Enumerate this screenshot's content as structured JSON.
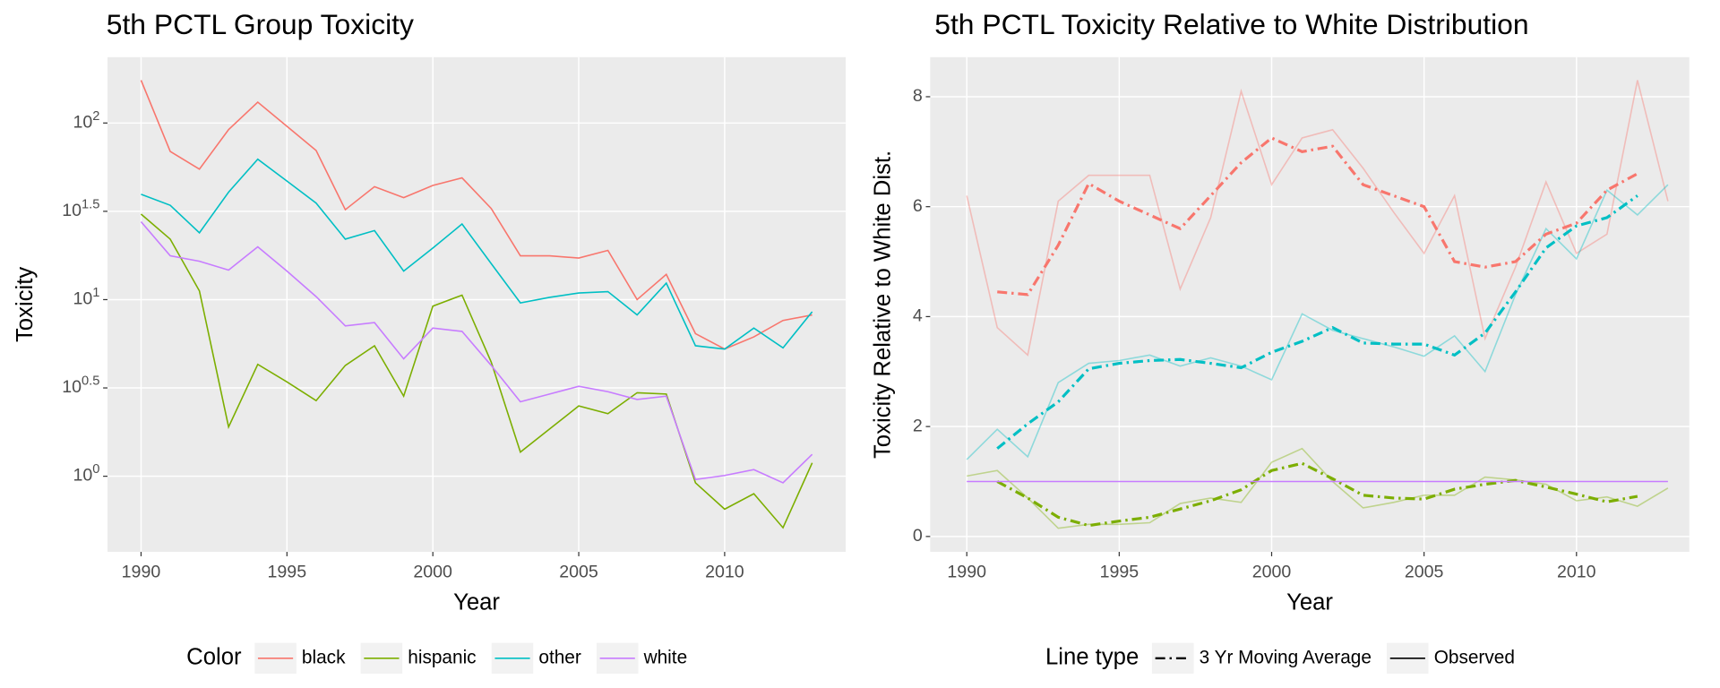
{
  "chart_data": [
    {
      "type": "line",
      "title": "5th PCTL Group Toxicity",
      "x_label": "Year",
      "y_label": "Toxicity",
      "y_scale": "log",
      "x": [
        1990,
        1991,
        1992,
        1993,
        1994,
        1995,
        1996,
        1997,
        1998,
        1999,
        2000,
        2001,
        2002,
        2003,
        2004,
        2005,
        2006,
        2007,
        2008,
        2009,
        2010,
        2011,
        2012,
        2013
      ],
      "xlim": [
        1988.85,
        2014.15
      ],
      "xticks": [
        1990,
        1995,
        2000,
        2005,
        2010
      ],
      "ylim": [
        0.373,
        236
      ],
      "yticks": [
        {
          "value": 1,
          "label": "10^0"
        },
        {
          "value": 3.162,
          "label": "10^0.5"
        },
        {
          "value": 10,
          "label": "10^1"
        },
        {
          "value": 31.62,
          "label": "10^1.5"
        },
        {
          "value": 100,
          "label": "10^2"
        }
      ],
      "grid": true,
      "legend": {
        "title": "Color",
        "position": "bottom"
      },
      "series": [
        {
          "name": "black",
          "color": "#F8766D",
          "values": [
            174.6,
            69.0,
            54.8,
            91.8,
            131.2,
            95.8,
            69.9,
            32.3,
            43.6,
            37.8,
            44.3,
            48.9,
            32.8,
            17.7,
            17.7,
            17.2,
            19.0,
            10.0,
            13.9,
            6.42,
            5.25,
            6.15,
            7.62,
            8.19
          ]
        },
        {
          "name": "hispanic",
          "color": "#7CAE00",
          "values": [
            30.5,
            22.0,
            11.2,
            1.9,
            4.3,
            3.42,
            2.68,
            4.24,
            5.48,
            2.84,
            9.18,
            10.6,
            4.43,
            1.37,
            1.85,
            2.5,
            2.26,
            2.97,
            2.92,
            0.918,
            0.651,
            0.796,
            0.511,
            1.19
          ]
        },
        {
          "name": "other",
          "color": "#00BFC4",
          "values": [
            39.5,
            34.2,
            23.9,
            40.6,
            62.4,
            46.9,
            35.2,
            22.0,
            24.6,
            14.5,
            19.6,
            26.8,
            16.0,
            9.58,
            10.3,
            10.9,
            11.1,
            8.19,
            12.4,
            5.48,
            5.25,
            6.9,
            5.33,
            8.54
          ]
        },
        {
          "name": "white",
          "color": "#C77CFF",
          "values": [
            27.6,
            17.7,
            16.5,
            14.7,
            19.9,
            14.5,
            10.4,
            7.1,
            7.41,
            4.62,
            6.9,
            6.61,
            4.24,
            2.64,
            2.92,
            3.23,
            3.01,
            2.72,
            2.84,
            0.958,
            1.01,
            1.09,
            0.918,
            1.33
          ]
        }
      ]
    },
    {
      "type": "line",
      "title": "5th PCTL Toxicity Relative to White Distribution",
      "x_label": "Year",
      "y_label": "Toxicity Relative to White Dist.",
      "y_scale": "linear",
      "xlim": [
        1988.8,
        2013.7
      ],
      "xticks": [
        1990,
        1995,
        2000,
        2005,
        2010
      ],
      "ylim": [
        -0.28,
        8.72
      ],
      "yticks": [
        0,
        2,
        4,
        6,
        8
      ],
      "grid": true,
      "legend": {
        "title": "Line type",
        "position": "bottom",
        "entries": [
          {
            "name": "3 Yr Moving Average",
            "dash": "dashdot"
          },
          {
            "name": "Observed",
            "dash": "solid"
          }
        ]
      },
      "series": [
        {
          "color": "#F8766D",
          "linetype": 1,
          "opacity": 0.4,
          "x": [
            1990,
            1991,
            1992,
            1993,
            1994,
            1995,
            1996,
            1997,
            1998,
            1999,
            2000,
            2001,
            2002,
            2003,
            2004,
            2005,
            2006,
            2007,
            2008,
            2009,
            2010,
            2011,
            2012,
            2013
          ],
          "values": [
            6.2,
            3.8,
            3.3,
            6.1,
            6.57,
            6.57,
            6.57,
            4.5,
            5.8,
            8.1,
            6.4,
            7.25,
            7.4,
            6.7,
            5.9,
            5.15,
            6.2,
            3.6,
            4.9,
            6.45,
            5.15,
            5.5,
            8.3,
            6.1
          ]
        },
        {
          "color": "#7CAE00",
          "linetype": 1,
          "opacity": 0.4,
          "x": [
            1990,
            1991,
            1992,
            1993,
            1994,
            1995,
            1996,
            1997,
            1998,
            1999,
            2000,
            2001,
            2002,
            2003,
            2004,
            2005,
            2006,
            2007,
            2008,
            2009,
            2010,
            2011,
            2012,
            2013
          ],
          "values": [
            1.1,
            1.2,
            0.7,
            0.15,
            0.22,
            0.22,
            0.25,
            0.6,
            0.7,
            0.62,
            1.35,
            1.6,
            1.0,
            0.52,
            0.62,
            0.75,
            0.75,
            1.08,
            1.03,
            0.95,
            0.65,
            0.72,
            0.55,
            0.88
          ]
        },
        {
          "color": "#00BFC4",
          "linetype": 1,
          "opacity": 0.4,
          "x": [
            1990,
            1991,
            1992,
            1993,
            1994,
            1995,
            1996,
            1997,
            1998,
            1999,
            2000,
            2001,
            2002,
            2003,
            2004,
            2005,
            2006,
            2007,
            2008,
            2009,
            2010,
            2011,
            2012,
            2013
          ],
          "values": [
            1.4,
            1.95,
            1.45,
            2.8,
            3.15,
            3.2,
            3.3,
            3.1,
            3.25,
            3.1,
            2.85,
            4.05,
            3.75,
            3.6,
            3.45,
            3.28,
            3.65,
            3.0,
            4.4,
            5.6,
            5.05,
            6.3,
            5.85,
            6.4
          ]
        },
        {
          "color": "#F8766D",
          "linetype": 0,
          "opacity": 1,
          "x": [
            1991,
            1992,
            1993,
            1994,
            1995,
            1996,
            1997,
            1998,
            1999,
            2000,
            2001,
            2002,
            2003,
            2004,
            2005,
            2006,
            2007,
            2008,
            2009,
            2010,
            2011,
            2012
          ],
          "values": [
            4.45,
            4.4,
            5.3,
            6.42,
            6.1,
            5.85,
            5.6,
            6.2,
            6.8,
            7.25,
            7.0,
            7.1,
            6.4,
            6.2,
            6.0,
            5.0,
            4.9,
            5.0,
            5.5,
            5.7,
            6.3,
            6.6
          ]
        },
        {
          "color": "#7CAE00",
          "linetype": 0,
          "opacity": 1,
          "x": [
            1991,
            1992,
            1993,
            1994,
            1995,
            1996,
            1997,
            1998,
            1999,
            2000,
            2001,
            2002,
            2003,
            2004,
            2005,
            2006,
            2007,
            2008,
            2009,
            2010,
            2011,
            2012
          ],
          "values": [
            1.0,
            0.7,
            0.35,
            0.2,
            0.28,
            0.35,
            0.5,
            0.65,
            0.85,
            1.2,
            1.33,
            1.05,
            0.75,
            0.7,
            0.68,
            0.86,
            0.95,
            1.02,
            0.9,
            0.77,
            0.63,
            0.73
          ]
        },
        {
          "color": "#00BFC4",
          "linetype": 0,
          "opacity": 1,
          "x": [
            1991,
            1992,
            1993,
            1994,
            1995,
            1996,
            1997,
            1998,
            1999,
            2000,
            2001,
            2002,
            2003,
            2004,
            2005,
            2006,
            2007,
            2008,
            2009,
            2010,
            2011,
            2012
          ],
          "values": [
            1.6,
            2.05,
            2.45,
            3.05,
            3.15,
            3.2,
            3.22,
            3.15,
            3.07,
            3.35,
            3.55,
            3.8,
            3.52,
            3.5,
            3.5,
            3.3,
            3.7,
            4.45,
            5.25,
            5.65,
            5.8,
            6.2
          ]
        },
        {
          "color": "#C77CFF",
          "linetype": 1,
          "opacity": 1,
          "x": [
            1990,
            1991,
            1992,
            1993,
            1994,
            1995,
            1996,
            1997,
            1998,
            1999,
            2000,
            2001,
            2002,
            2003,
            2004,
            2005,
            2006,
            2007,
            2008,
            2009,
            2010,
            2011,
            2012,
            2013
          ],
          "values": [
            1,
            1,
            1,
            1,
            1,
            1,
            1,
            1,
            1,
            1,
            1,
            1,
            1,
            1,
            1,
            1,
            1,
            1,
            1,
            1,
            1,
            1,
            1,
            1
          ]
        }
      ]
    }
  ]
}
